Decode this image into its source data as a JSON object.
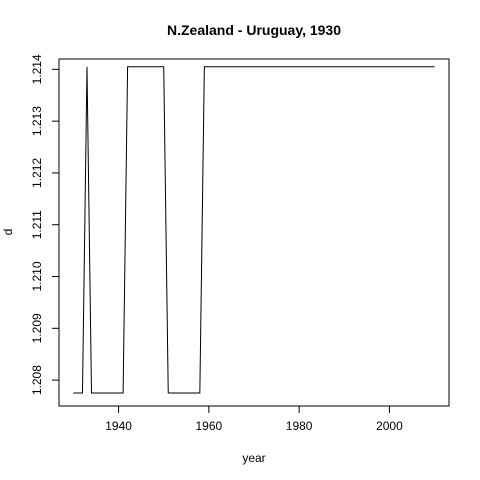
{
  "chart_data": {
    "type": "line",
    "title": "N.Zealand - Uruguay, 1930",
    "xlabel": "year",
    "ylabel": "d",
    "xlim": [
      1926.8,
      2013.2
    ],
    "ylim": [
      1207.5,
      1214.2
    ],
    "x_ticks": [
      1940,
      1960,
      1980,
      2000
    ],
    "y_ticks": [
      1.208,
      1.209,
      1.21,
      1.211,
      1.212,
      1.213,
      1.214
    ],
    "y_tick_labels": [
      "1.208",
      "1.209",
      "1.210",
      "1.211",
      "1.212",
      "1.213",
      "1.214"
    ],
    "grid": false,
    "legend": "none",
    "line_color": "#000000",
    "series": [
      {
        "x": [
          1930,
          1932,
          1933,
          1934,
          1941,
          1942,
          1950,
          1951,
          1958,
          1959,
          2010
        ],
        "y": [
          1.20775,
          1.20775,
          1.21405,
          1.20775,
          1.20775,
          1.21405,
          1.21405,
          1.20775,
          1.20775,
          1.21405,
          1.21405
        ]
      }
    ]
  }
}
